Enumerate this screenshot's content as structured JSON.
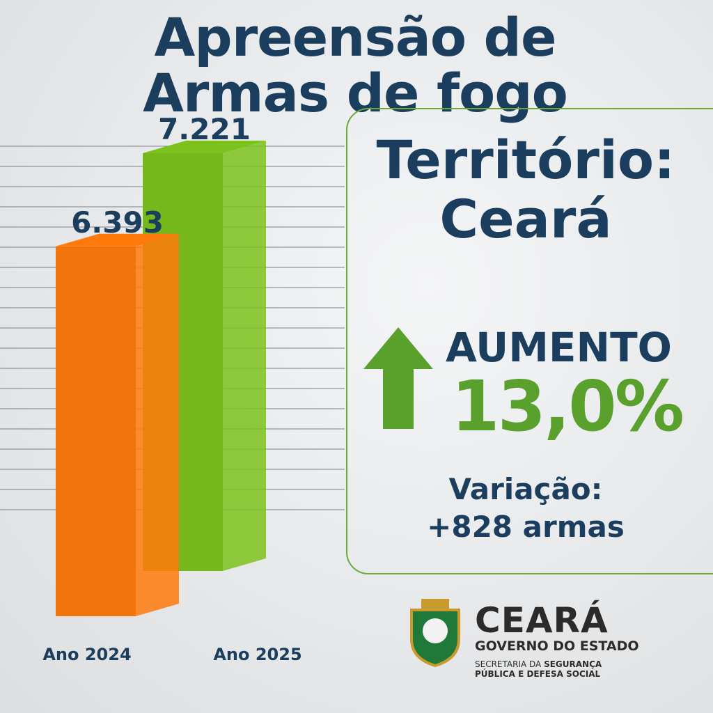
{
  "chart_data": {
    "type": "bar",
    "title": "Apreensão de Armas de fogo",
    "categories": [
      "Ano 2024",
      "Ano 2025"
    ],
    "values": [
      6393,
      7221
    ],
    "value_labels": [
      "6.393",
      "7.221"
    ],
    "colors": [
      "#ff7a0a",
      "#7cc21c"
    ]
  },
  "panel": {
    "territory_label": "Território:",
    "territory": "Ceará",
    "trend": "AUMENTO",
    "change": "13,0%",
    "variation_label": "Variação:",
    "variation": "+828 armas"
  },
  "logo": {
    "name": "CEARÁ",
    "subtitle": "GOVERNO DO ESTADO",
    "dept_prefix": "SECRETARIA DA",
    "dept_bold": "SEGURANÇA",
    "dept_line2": "PÚBLICA E DEFESA SOCIAL"
  }
}
